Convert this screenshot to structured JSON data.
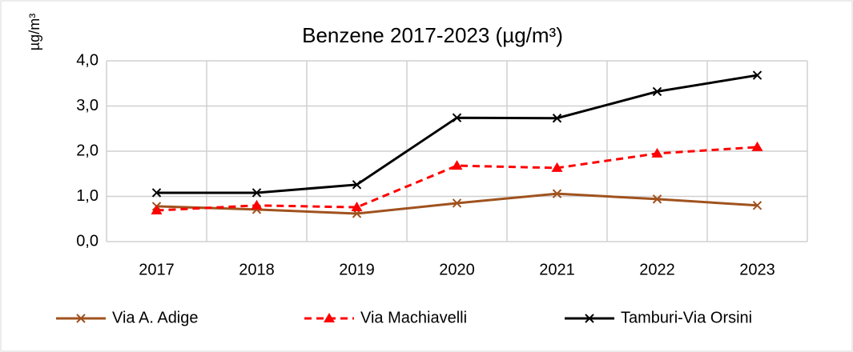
{
  "chart_data": {
    "type": "line",
    "title": "Benzene 2017-2023 (µg/m³)",
    "y_label": "µg/m³",
    "categories": [
      "2017",
      "2018",
      "2019",
      "2020",
      "2021",
      "2022",
      "2023"
    ],
    "series": [
      {
        "name": "Via A. Adige",
        "color": "#a0521e",
        "dash": false,
        "marker": "x",
        "values": [
          0.78,
          0.71,
          0.62,
          0.85,
          1.06,
          0.94,
          0.8
        ]
      },
      {
        "name": "Via Machiavelli",
        "color": "#ff0000",
        "dash": true,
        "marker": "triangle",
        "values": [
          0.69,
          0.8,
          0.76,
          1.68,
          1.63,
          1.95,
          2.09
        ]
      },
      {
        "name": "Tamburi-Via Orsini",
        "color": "#000000",
        "dash": false,
        "marker": "x",
        "values": [
          1.08,
          1.08,
          1.26,
          2.74,
          2.73,
          3.32,
          3.68
        ]
      }
    ],
    "ylim": [
      0,
      4
    ],
    "yticks": [
      {
        "value": 0,
        "label": "0,0"
      },
      {
        "value": 1,
        "label": "1,0"
      },
      {
        "value": 2,
        "label": "2,0"
      },
      {
        "value": 3,
        "label": "3,0"
      },
      {
        "value": 4,
        "label": "4,0"
      }
    ],
    "grid": true,
    "legend": "bottom"
  }
}
